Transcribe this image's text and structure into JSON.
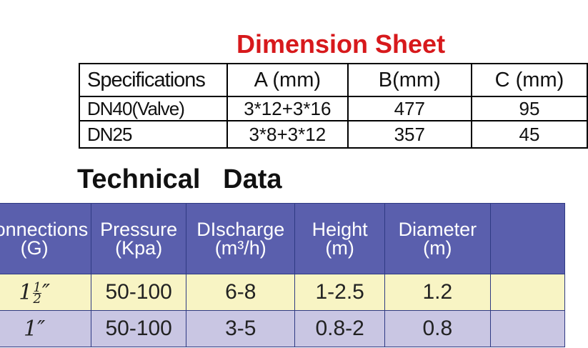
{
  "dimension_sheet": {
    "title": "Dimension Sheet",
    "headers": [
      "Specifications",
      "A (mm)",
      "B(mm)",
      "C (mm)"
    ],
    "rows": [
      [
        "DN40(Valve)",
        "3*12+3*16",
        "477",
        "95"
      ],
      [
        "DN25",
        "3*8+3*12",
        "357",
        "45"
      ]
    ]
  },
  "technical_data": {
    "title": "Technical   Data",
    "headers": [
      {
        "line1": "Connections",
        "line2": "(G)"
      },
      {
        "line1": "Pressure",
        "line2": "(Kpa)"
      },
      {
        "line1": "DIscharge",
        "line2": "(m³/h)"
      },
      {
        "line1": "Height",
        "line2": "(m)"
      },
      {
        "line1": "Diameter",
        "line2": "(m)"
      }
    ],
    "rows": [
      {
        "connection_whole": "1",
        "connection_num": "1",
        "connection_den": "2",
        "connection_mark": "″",
        "pressure": "50-100",
        "discharge": "6-8",
        "height": "1-2.5",
        "diameter": "1.2"
      },
      {
        "connection": "1″",
        "pressure": "50-100",
        "discharge": "3-5",
        "height": "0.8-2",
        "diameter": "0.8"
      }
    ]
  }
}
